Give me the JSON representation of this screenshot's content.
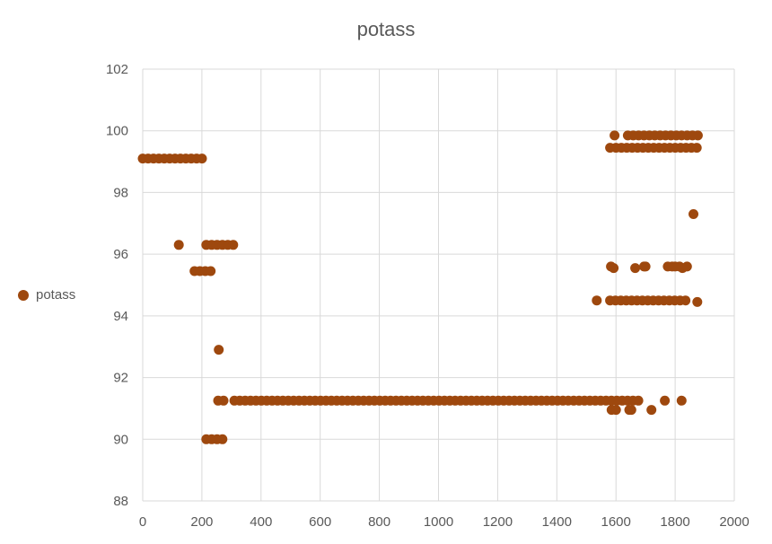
{
  "chart_data": {
    "type": "scatter",
    "title": "potass",
    "xlabel": "",
    "ylabel": "",
    "xlim": [
      0,
      2000
    ],
    "ylim": [
      88,
      102
    ],
    "xticks": [
      0,
      200,
      400,
      600,
      800,
      1000,
      1200,
      1400,
      1600,
      1800,
      2000
    ],
    "yticks": [
      88,
      90,
      92,
      94,
      96,
      98,
      100,
      102
    ],
    "x_tick_labels": [
      "0",
      "200",
      "400",
      "600",
      "800",
      "1000",
      "1200",
      "1400",
      "1600",
      "1800",
      "2000"
    ],
    "y_tick_labels": [
      "88",
      "90",
      "92",
      "94",
      "96",
      "98",
      "100",
      "102"
    ],
    "grid": true,
    "legend": {
      "position": "left",
      "entries": [
        "potass"
      ]
    },
    "series": [
      {
        "name": "potass",
        "color": "#9E480E",
        "segments": [
          {
            "x_start": 0,
            "x_end": 210,
            "y": 99.1
          },
          {
            "x_start": 175,
            "x_end": 230,
            "y": 95.45
          },
          {
            "x_start": 215,
            "x_end": 310,
            "y": 96.3
          },
          {
            "x_start": 255,
            "x_end": 280,
            "y": 91.25
          },
          {
            "x_start": 310,
            "x_end": 1690,
            "y": 91.25
          },
          {
            "x_start": 215,
            "x_end": 280,
            "y": 90.0
          },
          {
            "x_start": 1580,
            "x_end": 1840,
            "y": 94.5
          },
          {
            "x_start": 1640,
            "x_end": 1890,
            "y": 99.85
          },
          {
            "x_start": 1600,
            "x_end": 1880,
            "y": 99.45
          }
        ],
        "points": [
          [
            122,
            96.3
          ],
          [
            257,
            92.9
          ],
          [
            1535,
            94.5
          ],
          [
            1875,
            94.45
          ],
          [
            1583,
            95.6
          ],
          [
            1592,
            95.55
          ],
          [
            1665,
            95.55
          ],
          [
            1695,
            95.6
          ],
          [
            1700,
            95.6
          ],
          [
            1775,
            95.6
          ],
          [
            1790,
            95.6
          ],
          [
            1800,
            95.6
          ],
          [
            1815,
            95.6
          ],
          [
            1825,
            95.55
          ],
          [
            1840,
            95.6
          ],
          [
            1580,
            99.45
          ],
          [
            1595,
            99.85
          ],
          [
            1862,
            97.3
          ],
          [
            1585,
            90.95
          ],
          [
            1600,
            90.95
          ],
          [
            1645,
            90.95
          ],
          [
            1652,
            90.95
          ],
          [
            1720,
            90.95
          ],
          [
            1765,
            91.25
          ],
          [
            1822,
            91.25
          ]
        ]
      }
    ]
  }
}
